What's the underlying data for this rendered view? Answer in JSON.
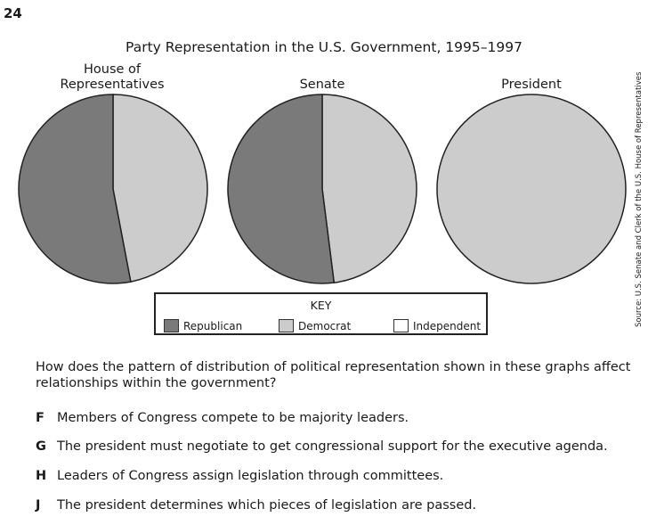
{
  "question_number": "24",
  "colors": {
    "republican": "#7a7a7a",
    "democrat": "#cccccc",
    "independent": "#ffffff",
    "outline": "#222222"
  },
  "chart_data": {
    "type": "pie",
    "title": "Party Representation in the U.S. Government, 1995–1997",
    "pies": [
      {
        "label_lines": [
          "House of",
          "Representatives"
        ],
        "slices": [
          {
            "party": "Democrat",
            "value": 47
          },
          {
            "party": "Republican",
            "value": 53
          }
        ]
      },
      {
        "label_lines": [
          "Senate"
        ],
        "slices": [
          {
            "party": "Democrat",
            "value": 48
          },
          {
            "party": "Republican",
            "value": 52
          }
        ]
      },
      {
        "label_lines": [
          "President"
        ],
        "slices": [
          {
            "party": "Democrat",
            "value": 100
          }
        ]
      }
    ],
    "legend": {
      "title": "KEY",
      "placement": "bottom",
      "entries": [
        "Republican",
        "Democrat",
        "Independent"
      ]
    },
    "source": "Source: U.S. Senate and Clerk of the U.S. House of Representatives"
  },
  "question": {
    "text": "How does the pattern of distribution of political representation shown in these graphs affect relationships within the government?",
    "options": [
      {
        "letter": "F",
        "text": "Members of Congress compete to be majority leaders."
      },
      {
        "letter": "G",
        "text": "The president must negotiate to get congressional support for the executive agenda."
      },
      {
        "letter": "H",
        "text": "Leaders of Congress assign legislation through committees."
      },
      {
        "letter": "J",
        "text": "The president determines which pieces of legislation are passed."
      }
    ]
  }
}
